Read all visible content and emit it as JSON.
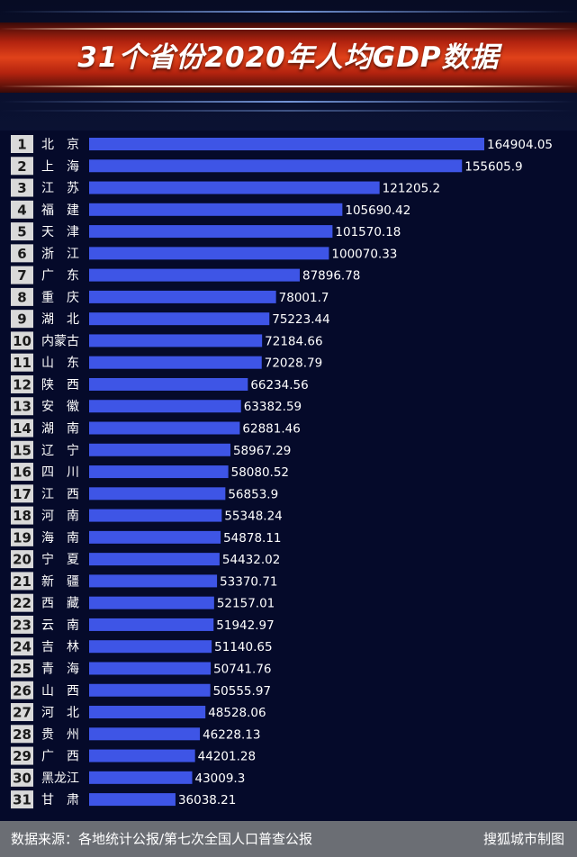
{
  "title": "31个省份2020年人均GDP数据",
  "footer": {
    "source": "数据来源：各地统计公报/第七次全国人口普查公报",
    "credit": "搜狐城市制图"
  },
  "colors": {
    "background": "#050a2a",
    "banner": "#d63a17",
    "bar": "#3e55e6",
    "rank_badge": "#d9d9d9",
    "text": "#ffffff",
    "footer": "#6b6e74"
  },
  "chart_data": {
    "type": "bar",
    "orientation": "horizontal",
    "ranks": [
      "1",
      "2",
      "3",
      "4",
      "5",
      "6",
      "7",
      "8",
      "9",
      "10",
      "11",
      "12",
      "13",
      "14",
      "15",
      "16",
      "17",
      "18",
      "19",
      "20",
      "21",
      "22",
      "23",
      "24",
      "25",
      "26",
      "27",
      "28",
      "29",
      "30",
      "31"
    ],
    "categories": [
      "北　京",
      "上　海",
      "江　苏",
      "福　建",
      "天　津",
      "浙　江",
      "广　东",
      "重　庆",
      "湖　北",
      "内蒙古",
      "山　东",
      "陕　西",
      "安　徽",
      "湖　南",
      "辽　宁",
      "四　川",
      "江　西",
      "河　南",
      "海　南",
      "宁　夏",
      "新　疆",
      "西　藏",
      "云　南",
      "吉　林",
      "青　海",
      "山　西",
      "河　北",
      "贵　州",
      "广　西",
      "黑龙江",
      "甘　肃"
    ],
    "values": [
      164904.05,
      155605.9,
      121205.2,
      105690.42,
      101570.18,
      100070.33,
      87896.78,
      78001.7,
      75223.44,
      72184.66,
      72028.79,
      66234.56,
      63382.59,
      62881.46,
      58967.29,
      58080.52,
      56853.9,
      55348.24,
      54878.11,
      54432.02,
      53370.71,
      52157.01,
      51942.97,
      51140.65,
      50741.76,
      50555.97,
      48528.06,
      46228.13,
      44201.28,
      43009.3,
      36038.21
    ],
    "value_labels": [
      "164904.05",
      "155605.9",
      "121205.2",
      "105690.42",
      "101570.18",
      "100070.33",
      "87896.78",
      "78001.7",
      "75223.44",
      "72184.66",
      "72028.79",
      "66234.56",
      "63382.59",
      "62881.46",
      "58967.29",
      "58080.52",
      "56853.9",
      "55348.24",
      "54878.11",
      "54432.02",
      "53370.71",
      "52157.01",
      "51942.97",
      "51140.65",
      "50741.76",
      "50555.97",
      "48528.06",
      "46228.13",
      "44201.28",
      "43009.3",
      "36038.21"
    ],
    "xlim": [
      0,
      164904.05
    ],
    "grid": false,
    "legend": "none"
  }
}
